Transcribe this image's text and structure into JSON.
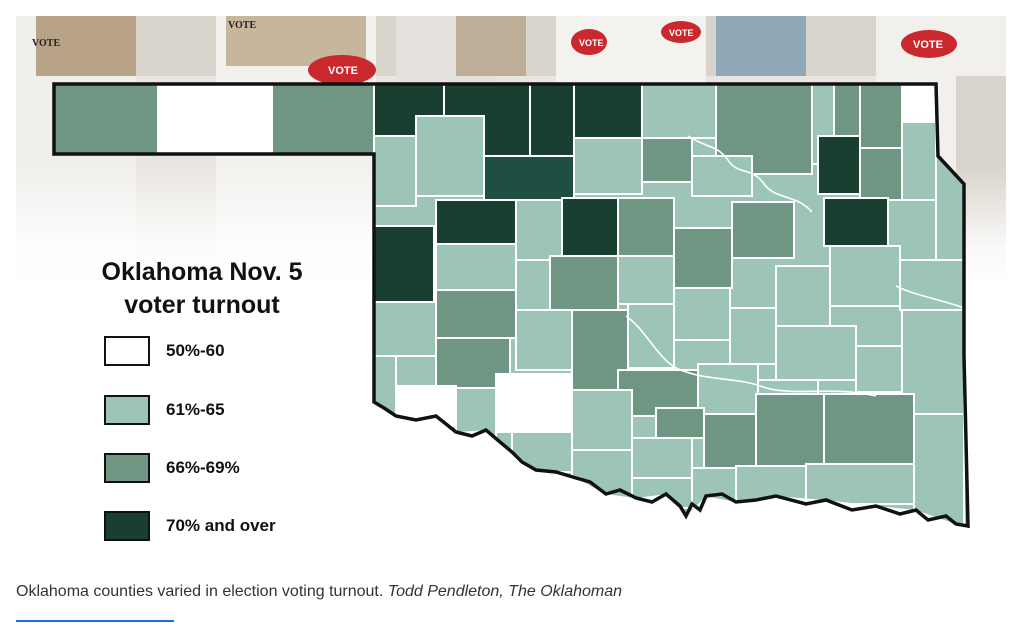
{
  "legend": {
    "title_line1": "Oklahoma Nov. 5",
    "title_line2": "voter turnout",
    "items": [
      {
        "label": "50%-60",
        "color": "#ffffff"
      },
      {
        "label": "61%-65",
        "color": "#9cc4b7"
      },
      {
        "label": "66%-69%",
        "color": "#6e9682"
      },
      {
        "label": "70% and over",
        "color": "#183f30"
      }
    ]
  },
  "photo": {
    "ballot_box_text": "VOTE"
  },
  "caption": {
    "text": "Oklahoma counties varied in election voting turnout.",
    "credit": "Todd Pendleton, The Oklahoman"
  }
}
